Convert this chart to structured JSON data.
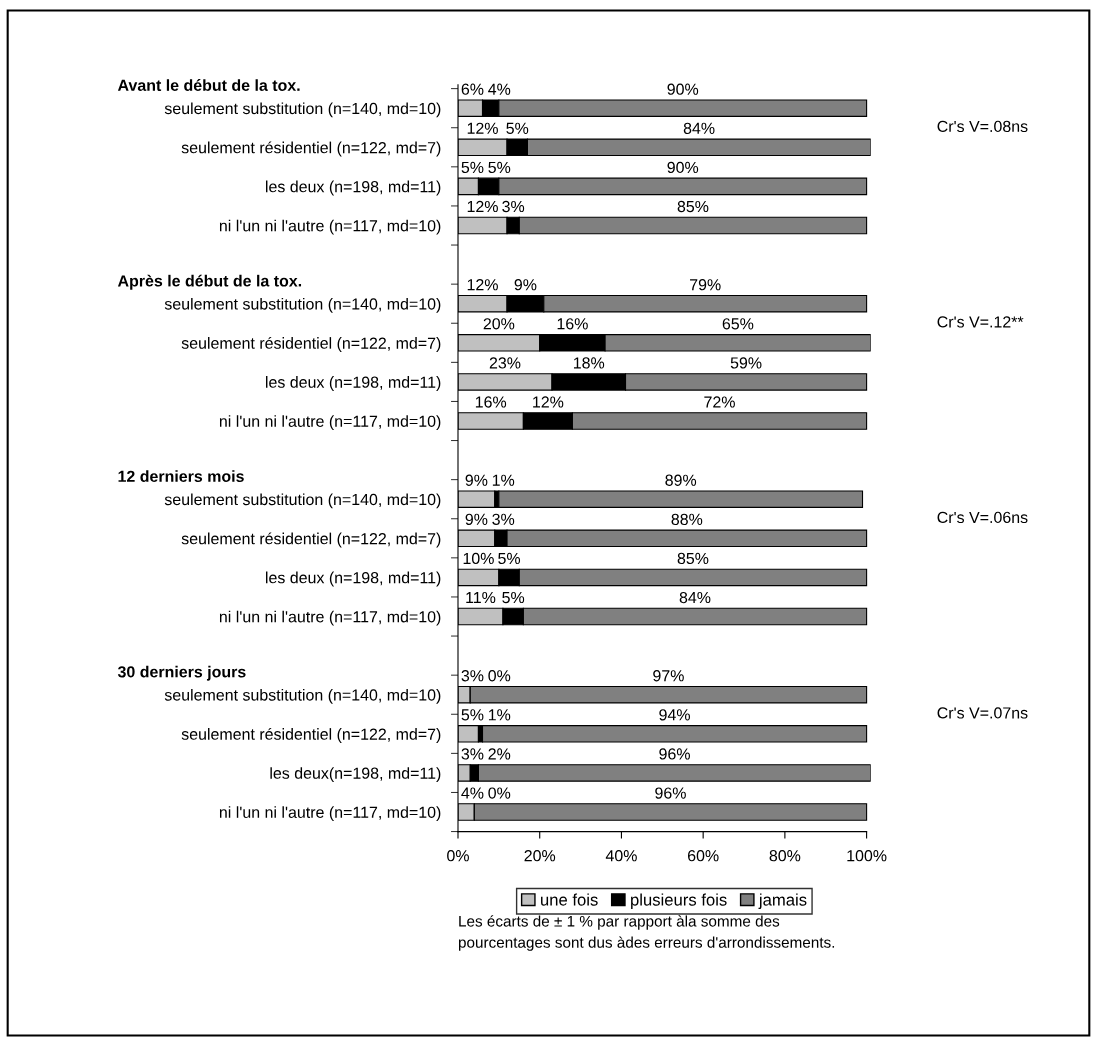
{
  "chart_data": {
    "type": "bar",
    "orientation": "horizontal",
    "stacked": true,
    "categories": [
      "seulement substitution (n=140, md=10)",
      "seulement résidentiel (n=122, md=7)",
      "les deux (n=198, md=11)",
      "ni l'un ni l'autre (n=117, md=10)",
      null,
      "seulement substitution (n=140, md=10)",
      "seulement résidentiel (n=122, md=7)",
      "les deux (n=198, md=11)",
      "ni l'un ni l'autre (n=117, md=10)",
      null,
      "seulement substitution (n=140, md=10)",
      "seulement résidentiel (n=122, md=7)",
      "les deux (n=198, md=11)",
      "ni l'un ni l'autre (n=117, md=10)",
      null,
      "seulement substitution (n=140, md=10)",
      "seulement résidentiel (n=122, md=7)",
      "les deux(n=198, md=11)",
      "ni l'un ni l'autre (n=117, md=10)"
    ],
    "series": [
      {
        "name": "une fois",
        "color": "#c0c0c0",
        "values": [
          6,
          12,
          5,
          12,
          null,
          12,
          20,
          23,
          16,
          null,
          9,
          9,
          10,
          11,
          null,
          3,
          5,
          3,
          4
        ],
        "value_labels": [
          "6%",
          "12%",
          "5%",
          "12%",
          null,
          "12%",
          "20%",
          "23%",
          "16%",
          null,
          "9%",
          "9%",
          "10%",
          "11%",
          null,
          "3%",
          "5%",
          "3%",
          "4%"
        ]
      },
      {
        "name": "plusieurs fois",
        "color": "#000000",
        "values": [
          4,
          5,
          5,
          3,
          null,
          9,
          16,
          18,
          12,
          null,
          1,
          3,
          5,
          5,
          null,
          0,
          1,
          2,
          0
        ],
        "value_labels": [
          "4%",
          "5%",
          "5%",
          "3%",
          null,
          "9%",
          "16%",
          "18%",
          "12%",
          null,
          "1%",
          "3%",
          "5%",
          "5%",
          null,
          "0%",
          "1%",
          "2%",
          "0%"
        ]
      },
      {
        "name": "jamais",
        "color": "#808080",
        "values": [
          90,
          84,
          90,
          85,
          null,
          79,
          65,
          59,
          72,
          null,
          89,
          88,
          85,
          84,
          null,
          97,
          94,
          96,
          96
        ],
        "value_labels": [
          "90%",
          "84%",
          "90%",
          "85%",
          null,
          "79%",
          "65%",
          "59%",
          "72%",
          null,
          "89%",
          "88%",
          "85%",
          "84%",
          null,
          "97%",
          "94%",
          "96%",
          "96%"
        ]
      }
    ],
    "xlim": [
      0,
      101
    ],
    "xticks": [
      {
        "value": 0,
        "label": "0%"
      },
      {
        "value": 20,
        "label": "20%"
      },
      {
        "value": 40,
        "label": "40%"
      },
      {
        "value": 60,
        "label": "60%"
      },
      {
        "value": 80,
        "label": "80%"
      },
      {
        "value": 100,
        "label": "100%"
      }
    ],
    "grid": false,
    "legend": "bottom",
    "annotations": [
      "Avant le début de la tox.",
      "Cr's V=.08ns",
      "Après le début de la tox.",
      "Cr's V=.12**",
      "12 derniers mois",
      "Cr's V=.06ns",
      "30 derniers jours",
      "Cr's V=.07ns",
      "Les écarts de ± 1 % par rapport àla somme des\npourcentages sont dus àdes erreurs d'arrondissements."
    ]
  }
}
